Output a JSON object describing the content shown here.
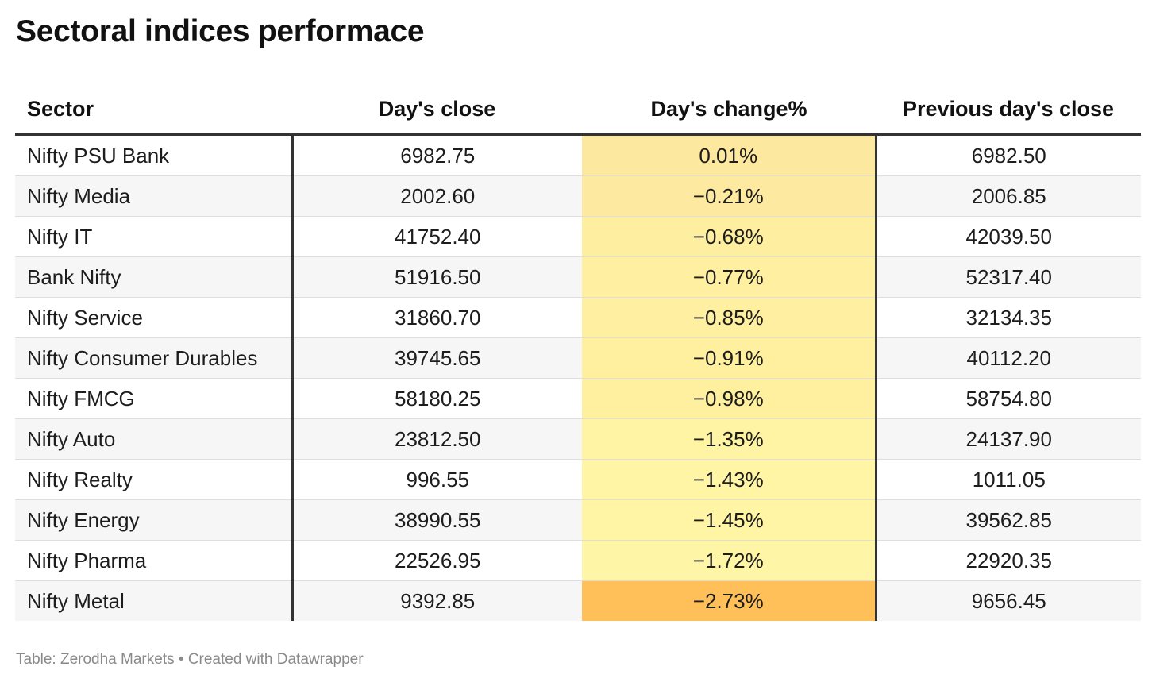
{
  "title": "Sectoral indices performace",
  "footer": {
    "source_label": "Table: Zerodha Markets",
    "separator": "•",
    "credit": "Created with Datawrapper"
  },
  "colors": {
    "text": "#1d1d1d",
    "zebra": "#f6f6f6",
    "rule": "#333333",
    "heat_low": "#fff7a8",
    "heat_high": "#ffc05a"
  },
  "chart_data": {
    "type": "table",
    "columns": [
      "Sector",
      "Day's close",
      "Day's change%",
      "Previous day's close"
    ],
    "rows": [
      {
        "sector": "Nifty PSU Bank",
        "close": "6982.75",
        "change": "0.01%",
        "prev_close": "6982.50",
        "change_value": 0.01
      },
      {
        "sector": "Nifty Media",
        "close": "2002.60",
        "change": "−0.21%",
        "prev_close": "2006.85",
        "change_value": -0.21
      },
      {
        "sector": "Nifty IT",
        "close": "41752.40",
        "change": "−0.68%",
        "prev_close": "42039.50",
        "change_value": -0.68
      },
      {
        "sector": "Bank Nifty",
        "close": "51916.50",
        "change": "−0.77%",
        "prev_close": "52317.40",
        "change_value": -0.77
      },
      {
        "sector": "Nifty Service",
        "close": "31860.70",
        "change": "−0.85%",
        "prev_close": "32134.35",
        "change_value": -0.85
      },
      {
        "sector": "Nifty Consumer Durables",
        "close": "39745.65",
        "change": "−0.91%",
        "prev_close": "40112.20",
        "change_value": -0.91
      },
      {
        "sector": "Nifty FMCG",
        "close": "58180.25",
        "change": "−0.98%",
        "prev_close": "58754.80",
        "change_value": -0.98
      },
      {
        "sector": "Nifty Auto",
        "close": "23812.50",
        "change": "−1.35%",
        "prev_close": "24137.90",
        "change_value": -1.35
      },
      {
        "sector": "Nifty Realty",
        "close": "996.55",
        "change": "−1.43%",
        "prev_close": "1011.05",
        "change_value": -1.43
      },
      {
        "sector": "Nifty Energy",
        "close": "38990.55",
        "change": "−1.45%",
        "prev_close": "39562.85",
        "change_value": -1.45
      },
      {
        "sector": "Nifty Pharma",
        "close": "22526.95",
        "change": "−1.72%",
        "prev_close": "22920.35",
        "change_value": -1.72
      },
      {
        "sector": "Nifty Metal",
        "close": "9392.85",
        "change": "−2.73%",
        "prev_close": "9656.45",
        "change_value": -2.73
      }
    ]
  }
}
